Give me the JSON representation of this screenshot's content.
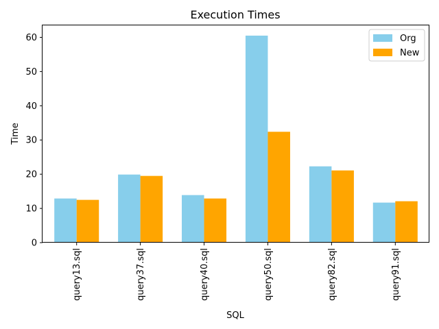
{
  "chart_data": {
    "type": "bar",
    "title": "Execution Times",
    "xlabel": "SQL",
    "ylabel": "Time",
    "categories": [
      "query13.sql",
      "query37.sql",
      "query40.sql",
      "query50.sql",
      "query82.sql",
      "query91.sql"
    ],
    "series": [
      {
        "name": "Org",
        "color": "#87CEEB",
        "values": [
          12.9,
          19.9,
          13.9,
          60.5,
          22.3,
          11.7
        ]
      },
      {
        "name": "New",
        "color": "#FFA500",
        "values": [
          12.5,
          19.5,
          12.9,
          32.4,
          21.1,
          12.1
        ]
      }
    ],
    "yticks": [
      0,
      10,
      20,
      30,
      40,
      50,
      60
    ],
    "ylim": [
      0,
      63.5
    ],
    "grid": false,
    "legend_position": "top-right"
  }
}
